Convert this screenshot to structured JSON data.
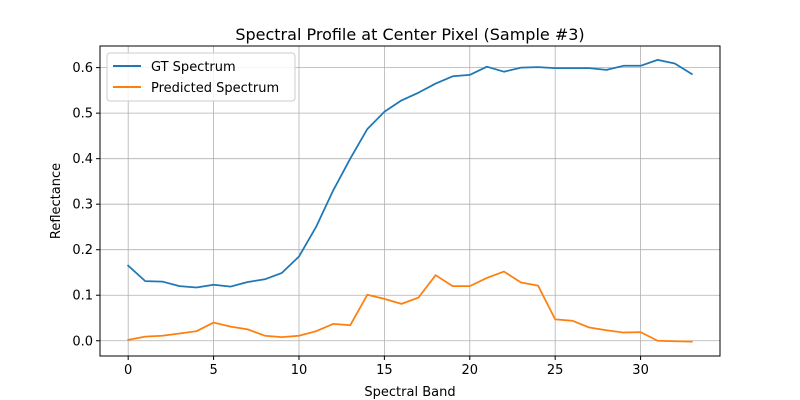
{
  "chart_data": {
    "type": "line",
    "title": "Spectral Profile at Center Pixel (Sample #3)",
    "xlabel": "Spectral Band",
    "ylabel": "Reflectance",
    "xlim": [
      -1.65,
      34.65
    ],
    "ylim": [
      -0.0335,
      0.6475
    ],
    "xticks": [
      0,
      5,
      10,
      15,
      20,
      25,
      30
    ],
    "yticks": [
      0.0,
      0.1,
      0.2,
      0.3,
      0.4,
      0.5,
      0.6
    ],
    "grid": true,
    "legend_position": "upper-left",
    "x": [
      0,
      1,
      2,
      3,
      4,
      5,
      6,
      7,
      8,
      9,
      10,
      11,
      12,
      13,
      14,
      15,
      16,
      17,
      18,
      19,
      20,
      21,
      22,
      23,
      24,
      25,
      26,
      27,
      28,
      29,
      30,
      31,
      32,
      33
    ],
    "series": [
      {
        "name": "GT Spectrum",
        "color": "#1f77b4",
        "values": [
          0.165,
          0.131,
          0.13,
          0.12,
          0.117,
          0.123,
          0.119,
          0.129,
          0.135,
          0.149,
          0.185,
          0.25,
          0.33,
          0.4,
          0.465,
          0.503,
          0.528,
          0.545,
          0.565,
          0.581,
          0.584,
          0.602,
          0.591,
          0.6,
          0.601,
          0.599,
          0.599,
          0.599,
          0.595,
          0.604,
          0.604,
          0.617,
          0.609,
          0.586
        ]
      },
      {
        "name": "Predicted Spectrum",
        "color": "#ff7f0e",
        "values": [
          0.002,
          0.009,
          0.011,
          0.016,
          0.021,
          0.04,
          0.031,
          0.025,
          0.011,
          0.008,
          0.011,
          0.021,
          0.037,
          0.034,
          0.101,
          0.092,
          0.081,
          0.095,
          0.144,
          0.12,
          0.12,
          0.138,
          0.152,
          0.128,
          0.121,
          0.047,
          0.044,
          0.029,
          0.023,
          0.018,
          0.019,
          0.0,
          -0.001,
          -0.002
        ]
      }
    ]
  }
}
